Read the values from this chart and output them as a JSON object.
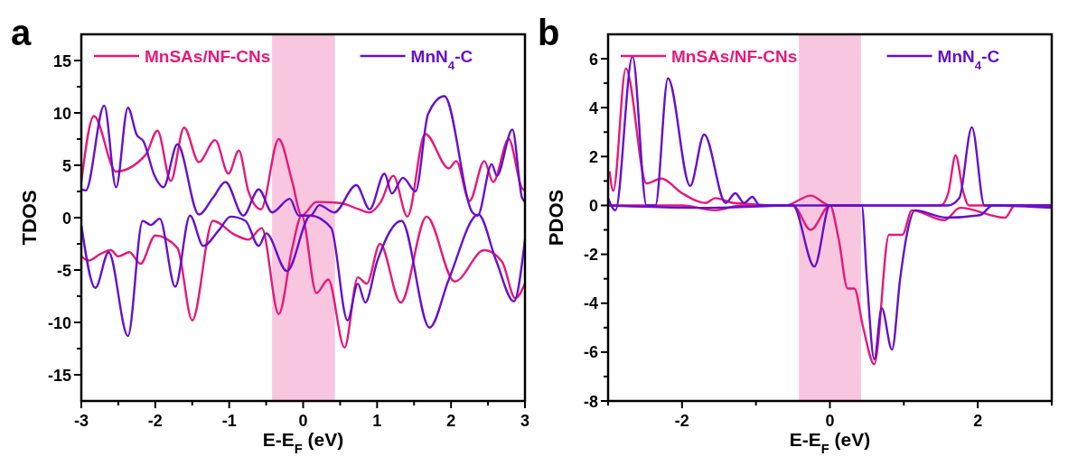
{
  "chart_data": [
    {
      "type": "line",
      "title": "a",
      "xlabel": "E-E$_{F}$ (eV)",
      "ylabel": "TDOS",
      "legend": "top",
      "xlim": [
        -3,
        3
      ],
      "ylim": [
        -17.5,
        17.5
      ],
      "xticks": [
        -3,
        {
          "value": -2.5,
          "label": null
        },
        -2,
        {
          "value": -1.5,
          "label": null
        },
        -1,
        {
          "value": -0.5,
          "label": null
        },
        0,
        {
          "value": 0.5,
          "label": null
        },
        1,
        {
          "value": 1.5,
          "label": null
        },
        2,
        {
          "value": 2.5,
          "label": null
        },
        3
      ],
      "yticks": [
        -15,
        {
          "value": -12.5,
          "label": null
        },
        -10,
        {
          "value": -7.5,
          "label": null
        },
        -5,
        {
          "value": -2.5,
          "label": null
        },
        0,
        {
          "value": 2.5,
          "label": null
        },
        5,
        {
          "value": 7.5,
          "label": null
        },
        10,
        {
          "value": 12.5,
          "label": null
        },
        15
      ],
      "bands": [
        {
          "axis": "x",
          "from": -0.42,
          "to": 0.43,
          "color": "#f9c6df"
        }
      ],
      "series": [
        {
          "name": "MnSAs/NF-CNs",
          "color": "#e5197b",
          "x": [
            -3,
            -2.83,
            -2.53,
            -2.13,
            -1.97,
            -1.79,
            -1.61,
            -1.41,
            -1.19,
            -1.01,
            -0.87,
            -0.74,
            -0.57,
            -0.33,
            -0.15,
            -0.02,
            0.18,
            0.5,
            0.75,
            0.9,
            1.05,
            1.22,
            1.41,
            1.65,
            1.97,
            2.07,
            2.25,
            2.45,
            2.57,
            2.78,
            2.96,
            3
          ],
          "values": [
            3.4,
            9.7,
            4.4,
            6.0,
            8.3,
            3.5,
            8.6,
            5.3,
            7.4,
            4.2,
            6.4,
            2.5,
            0.8,
            7.5,
            3.5,
            0.2,
            1.5,
            1.4,
            0.8,
            0.5,
            1.5,
            4.0,
            0.1,
            8.0,
            4.7,
            5.4,
            1.6,
            5.4,
            3.4,
            7.5,
            2.8,
            2.6
          ]
        },
        {
          "color": "#e5197b",
          "x": [
            -3,
            -2.9,
            -2.75,
            -2.6,
            -2.5,
            -2.35,
            -2.2,
            -2.0,
            -1.7,
            -1.5,
            -1.22,
            -0.93,
            -0.74,
            -0.56,
            -0.33,
            -0.15,
            -0.02,
            0.18,
            0.34,
            0.56,
            0.74,
            0.86,
            1.04,
            1.32,
            1.67,
            2.05,
            2.45,
            2.69,
            2.87,
            3
          ],
          "values": [
            -3.7,
            -4.1,
            -3.5,
            -3.1,
            -3.7,
            -3.3,
            -4.4,
            -1.7,
            -2.9,
            -9.8,
            -0.3,
            -1.6,
            -2.1,
            -1.0,
            -9.2,
            -3.0,
            0.2,
            -7.2,
            -5.9,
            -12.4,
            -5.7,
            -6.3,
            -2.5,
            -8.1,
            0.1,
            -6.1,
            -3.1,
            -4.2,
            -7.7,
            -6.3
          ]
        },
        {
          "name": "MnN$_{4}$-C",
          "color": "#6610cc",
          "x": [
            -3,
            -2.94,
            -2.69,
            -2.53,
            -2.37,
            -2.25,
            -2.16,
            -2.01,
            -1.89,
            -1.7,
            -1.41,
            -1.22,
            -1.05,
            -0.81,
            -0.6,
            -0.42,
            -0.18,
            -0.06,
            0.1,
            0.22,
            0.42,
            0.72,
            0.9,
            1.1,
            1.2,
            1.35,
            1.52,
            1.69,
            1.91,
            2.29,
            2.36,
            2.55,
            2.62,
            2.83,
            2.96,
            3
          ],
          "values": [
            2.7,
            2.6,
            10.7,
            2.9,
            10.5,
            7.9,
            7.3,
            4.0,
            2.9,
            7.0,
            0.3,
            1.9,
            3.4,
            0.2,
            2.7,
            0.5,
            1.8,
            0.2,
            0.2,
            1.2,
            0.5,
            3.1,
            0.8,
            4.2,
            2.3,
            3.8,
            2.5,
            9.9,
            11.6,
            0.5,
            0.2,
            5.1,
            4.0,
            8.4,
            1.9,
            1.5
          ]
        },
        {
          "color": "#6610cc",
          "x": [
            -3,
            -2.81,
            -2.63,
            -2.37,
            -2.17,
            -2.06,
            -1.94,
            -1.73,
            -1.53,
            -1.35,
            -1.14,
            -0.98,
            -0.78,
            -0.6,
            -0.5,
            -0.22,
            0.1,
            0.38,
            0.6,
            0.74,
            0.84,
            1.0,
            1.33,
            1.71,
            1.97,
            2.37,
            2.61,
            2.85,
            3
          ],
          "values": [
            -0.7,
            -6.7,
            -3.3,
            -11.3,
            -0.3,
            -0.7,
            -0.1,
            -6.6,
            0.2,
            -2.7,
            -1.2,
            0.1,
            -0.3,
            -2.7,
            -1.5,
            -5.1,
            0.2,
            -1.0,
            -9.8,
            -6.3,
            -8.1,
            -4.2,
            -0.3,
            -10.5,
            -5.9,
            0.3,
            -4.1,
            -8.0,
            -2.1
          ]
        }
      ]
    },
    {
      "type": "line",
      "title": "b",
      "xlabel": "E-E$_{F}$ (eV)",
      "ylabel": "PDOS",
      "legend": "top",
      "xlim": [
        -3,
        3
      ],
      "ylim": [
        -8,
        7
      ],
      "xticks": [
        {
          "value": -3,
          "label": null
        },
        -2,
        {
          "value": -1,
          "label": null
        },
        0,
        {
          "value": 1,
          "label": null
        },
        2,
        {
          "value": 3,
          "label": null
        }
      ],
      "yticks": [
        -8,
        {
          "value": -7,
          "label": null
        },
        -6,
        {
          "value": -5,
          "label": null
        },
        -4,
        {
          "value": -3,
          "label": null
        },
        -2,
        {
          "value": -1,
          "label": null
        },
        0,
        {
          "value": 1,
          "label": null
        },
        2,
        {
          "value": 3,
          "label": null
        },
        4,
        {
          "value": 5,
          "label": null
        },
        6
      ],
      "bands": [
        {
          "axis": "x",
          "from": -0.42,
          "to": 0.42,
          "color": "#f9c6df"
        }
      ],
      "series": [
        {
          "name": "MnSAs/NF-CNs",
          "color": "#e5197b",
          "x": [
            -2.98,
            -2.93,
            -2.76,
            -2.48,
            -2.28,
            -2.0,
            -1.68,
            -1.55,
            -1.3,
            -0.6,
            -0.26,
            0.0,
            0.5,
            1.5,
            1.6,
            1.7,
            1.8,
            1.88,
            2.2,
            3
          ],
          "values": [
            1.4,
            0.6,
            5.6,
            0.9,
            1.1,
            0.5,
            0.1,
            0.3,
            0.1,
            0.0,
            0.4,
            0.0,
            0.0,
            0.0,
            0.5,
            2.05,
            0.6,
            0.0,
            0.0,
            0.0
          ]
        },
        {
          "color": "#e5197b",
          "x": [
            -3,
            -2.0,
            -1.55,
            -1.2,
            -0.5,
            -0.26,
            0.0,
            0.12,
            0.24,
            0.33,
            0.45,
            0.6,
            0.8,
            0.98,
            1.11,
            1.55,
            1.76,
            2.37,
            2.5,
            3
          ],
          "values": [
            0.0,
            0.0,
            -0.2,
            0.0,
            0.0,
            -1.0,
            0.0,
            -1.4,
            -3.4,
            -3.4,
            -5.0,
            -6.5,
            -1.2,
            -1.2,
            -0.2,
            -0.6,
            -0.1,
            -0.5,
            0.0,
            0.0
          ]
        },
        {
          "name": "MnN$_{4}$-C",
          "color": "#6610cc",
          "x": [
            -3,
            -2.9,
            -2.67,
            -2.48,
            -2.36,
            -2.19,
            -1.89,
            -1.7,
            -1.41,
            -1.28,
            -1.16,
            -1.05,
            -0.95,
            0.0,
            1.6,
            1.75,
            1.92,
            2.09,
            2.5,
            3
          ],
          "values": [
            0.3,
            -0.2,
            6.1,
            0.0,
            0.0,
            5.2,
            0.8,
            2.9,
            0.1,
            0.5,
            0.1,
            0.35,
            0.0,
            0.0,
            0.0,
            0.3,
            3.2,
            0.0,
            0.0,
            0.0
          ]
        },
        {
          "color": "#6610cc",
          "x": [
            -3,
            -1.6,
            -0.5,
            -0.21,
            0.0,
            0.43,
            0.5,
            0.6,
            0.7,
            0.84,
            0.95,
            1.04,
            1.15,
            1.57,
            2.03,
            2.2,
            3
          ],
          "values": [
            0.0,
            -0.1,
            0.0,
            -2.5,
            0.0,
            0.0,
            -3.0,
            -6.3,
            -4.2,
            -5.9,
            -3.0,
            -1.2,
            -0.2,
            -0.5,
            -0.4,
            0.0,
            -0.1
          ]
        }
      ]
    }
  ]
}
